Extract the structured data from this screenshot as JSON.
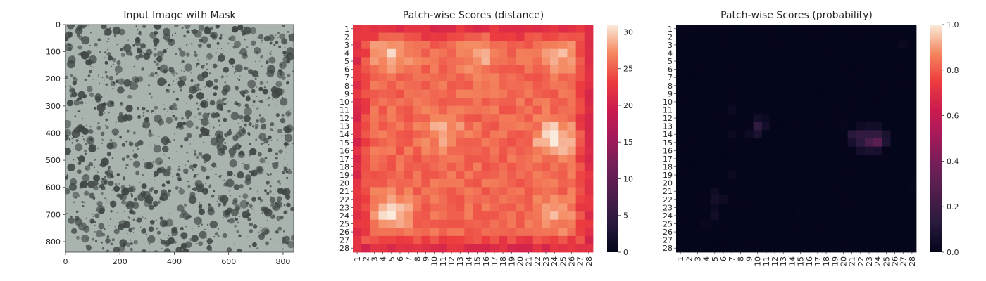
{
  "chart_data": [
    {
      "type": "image",
      "title": "Input Image with Mask",
      "xlabel": "",
      "ylabel": "",
      "xlim": [
        0,
        839
      ],
      "ylim": [
        839,
        0
      ],
      "x_ticks": [
        "0",
        "200",
        "400",
        "600",
        "800"
      ],
      "y_ticks": [
        "0",
        "100",
        "200",
        "300",
        "400",
        "500",
        "600",
        "700",
        "800"
      ],
      "texture": "gray-green surface with dark gray speckles",
      "colors": {
        "base": "#a9b4ae",
        "spot": "#3f4644"
      }
    },
    {
      "type": "heatmap",
      "title": "Patch-wise Scores (distance)",
      "xlabel": "",
      "ylabel": "",
      "rows": [
        "1",
        "2",
        "3",
        "4",
        "5",
        "6",
        "7",
        "8",
        "9",
        "10",
        "11",
        "12",
        "13",
        "14",
        "15",
        "16",
        "17",
        "18",
        "19",
        "20",
        "21",
        "22",
        "23",
        "24",
        "25",
        "26",
        "27",
        "28"
      ],
      "cols": [
        "1",
        "2",
        "3",
        "4",
        "5",
        "6",
        "7",
        "8",
        "9",
        "10",
        "11",
        "12",
        "13",
        "14",
        "15",
        "16",
        "17",
        "18",
        "19",
        "20",
        "21",
        "22",
        "23",
        "24",
        "25",
        "26",
        "27",
        "28"
      ],
      "colorbar": {
        "min": 0,
        "max": 31,
        "ticks": [
          "0",
          "5",
          "10",
          "15",
          "20",
          "25",
          "30"
        ]
      },
      "value_model": {
        "border": 21.5,
        "interior": 25.5,
        "hotspots": [
          {
            "row": 4,
            "col": 5,
            "peak": 29.5
          },
          {
            "row": 4,
            "col": 15.5,
            "peak": 28.5
          },
          {
            "row": 4,
            "col": 24.5,
            "peak": 28.5
          },
          {
            "row": 13.5,
            "col": 11,
            "peak": 29
          },
          {
            "row": 14.5,
            "col": 24,
            "peak": 31
          },
          {
            "row": 23.5,
            "col": 5,
            "peak": 30.5
          },
          {
            "row": 24,
            "col": 24,
            "peak": 28.5
          }
        ]
      }
    },
    {
      "type": "heatmap",
      "title": "Patch-wise Scores (probability)",
      "xlabel": "",
      "ylabel": "",
      "rows": [
        "1",
        "2",
        "3",
        "4",
        "5",
        "6",
        "7",
        "8",
        "9",
        "10",
        "11",
        "12",
        "13",
        "14",
        "15",
        "16",
        "17",
        "18",
        "19",
        "20",
        "21",
        "22",
        "23",
        "24",
        "25",
        "26",
        "27",
        "28"
      ],
      "cols": [
        "1",
        "2",
        "3",
        "4",
        "5",
        "6",
        "7",
        "8",
        "9",
        "10",
        "11",
        "12",
        "13",
        "14",
        "15",
        "16",
        "17",
        "18",
        "19",
        "20",
        "21",
        "22",
        "23",
        "24",
        "25",
        "26",
        "27",
        "28"
      ],
      "colorbar": {
        "min": 0,
        "max": 1.0,
        "ticks": [
          "0.0",
          "0.2",
          "0.4",
          "0.6",
          "0.8",
          "1.0"
        ]
      },
      "cells": [
        {
          "row": 14,
          "col": 21,
          "value": 0.12
        },
        {
          "row": 14,
          "col": 22,
          "value": 0.16
        },
        {
          "row": 14,
          "col": 23,
          "value": 0.15
        },
        {
          "row": 14,
          "col": 24,
          "value": 0.16
        },
        {
          "row": 14,
          "col": 25,
          "value": 0.08
        },
        {
          "row": 15,
          "col": 21,
          "value": 0.07
        },
        {
          "row": 15,
          "col": 22,
          "value": 0.14
        },
        {
          "row": 15,
          "col": 23,
          "value": 0.24
        },
        {
          "row": 15,
          "col": 24,
          "value": 0.3
        },
        {
          "row": 15,
          "col": 25,
          "value": 0.09
        },
        {
          "row": 16,
          "col": 22,
          "value": 0.06
        },
        {
          "row": 16,
          "col": 23,
          "value": 0.08
        },
        {
          "row": 16,
          "col": 24,
          "value": 0.07
        },
        {
          "row": 13,
          "col": 22,
          "value": 0.04
        },
        {
          "row": 13,
          "col": 23,
          "value": 0.05
        },
        {
          "row": 13,
          "col": 24,
          "value": 0.05
        },
        {
          "row": 12,
          "col": 10,
          "value": 0.05
        },
        {
          "row": 13,
          "col": 10,
          "value": 0.15
        },
        {
          "row": 13,
          "col": 11,
          "value": 0.05
        },
        {
          "row": 14,
          "col": 9,
          "value": 0.04
        },
        {
          "row": 14,
          "col": 10,
          "value": 0.08
        },
        {
          "row": 11,
          "col": 7,
          "value": 0.03
        },
        {
          "row": 12,
          "col": 11,
          "value": 0.03
        },
        {
          "row": 14,
          "col": 7,
          "value": 0.03
        },
        {
          "row": 21,
          "col": 5,
          "value": 0.04
        },
        {
          "row": 22,
          "col": 5,
          "value": 0.06
        },
        {
          "row": 22,
          "col": 6,
          "value": 0.04
        },
        {
          "row": 24,
          "col": 5,
          "value": 0.05
        },
        {
          "row": 23,
          "col": 5,
          "value": 0.03
        },
        {
          "row": 19,
          "col": 7,
          "value": 0.03
        },
        {
          "row": 3,
          "col": 27,
          "value": 0.03
        },
        {
          "row": 25,
          "col": 4,
          "value": 0.02
        }
      ]
    }
  ]
}
